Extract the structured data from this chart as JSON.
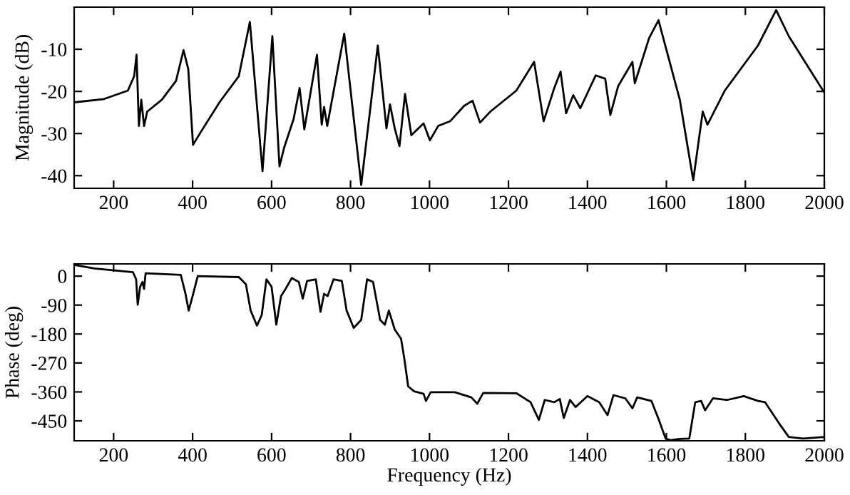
{
  "chart_data": [
    {
      "type": "line",
      "ylabel": "Magnitude (dB)",
      "xlim": [
        100,
        2000
      ],
      "ylim": [
        -43,
        0
      ],
      "xticks": [
        200,
        400,
        600,
        800,
        1000,
        1200,
        1400,
        1600,
        1800,
        2000
      ],
      "yticks": [
        -10,
        -20,
        -30,
        -40
      ],
      "grid": false,
      "marker": "none",
      "line_style": "solid",
      "series": [
        {
          "color": "#000000",
          "x": [
            100,
            176,
            236,
            252,
            258,
            264,
            270,
            277,
            285,
            322,
            358,
            377,
            389,
            401,
            419,
            468,
            517,
            545,
            577,
            602,
            620,
            632,
            656,
            671,
            683,
            715,
            727,
            733,
            741,
            784,
            827,
            869,
            891,
            900,
            912,
            924,
            938,
            954,
            985,
            1001,
            1022,
            1052,
            1088,
            1109,
            1128,
            1154,
            1220,
            1265,
            1289,
            1316,
            1332,
            1346,
            1364,
            1382,
            1421,
            1445,
            1458,
            1478,
            1514,
            1520,
            1556,
            1580,
            1634,
            1668,
            1692,
            1704,
            1748,
            1832,
            1878,
            1910,
            2000
          ],
          "values": [
            -22.6,
            -21.8,
            -19.8,
            -16.4,
            -11.3,
            -28.2,
            -22,
            -28.2,
            -24.8,
            -22,
            -17.5,
            -10.2,
            -14.7,
            -32.7,
            -29.9,
            -22.6,
            -16.4,
            -3.5,
            -38.9,
            -6.9,
            -37.8,
            -33.3,
            -26.5,
            -19.2,
            -29,
            -11.3,
            -27.9,
            -23.7,
            -28.2,
            -6.3,
            -42.2,
            -9.1,
            -28.8,
            -23.1,
            -28.8,
            -33,
            -20.6,
            -30.4,
            -27.6,
            -31.6,
            -28.2,
            -27.1,
            -23.4,
            -22.2,
            -27.4,
            -24.8,
            -19.8,
            -13,
            -27.1,
            -19.2,
            -15.3,
            -25.2,
            -20.9,
            -24,
            -16.2,
            -17,
            -25.6,
            -18.7,
            -13,
            -18.1,
            -7.4,
            -3.1,
            -22,
            -41.1,
            -24.8,
            -27.9,
            -19.8,
            -9.1,
            -0.7,
            -6.9,
            -20.3
          ]
        }
      ]
    },
    {
      "type": "line",
      "xlabel": "Frequency (Hz)",
      "ylabel": "Phase (deg)",
      "xlim": [
        100,
        2000
      ],
      "ylim": [
        -512,
        38
      ],
      "xticks": [
        200,
        400,
        600,
        800,
        1000,
        1200,
        1400,
        1600,
        1800,
        2000
      ],
      "yticks": [
        0,
        -90,
        -180,
        -270,
        -360,
        -450
      ],
      "grid": false,
      "marker": "none",
      "line_style": "solid",
      "series": [
        {
          "color": "#000000",
          "x": [
            100,
            151,
            249,
            257,
            261,
            267,
            273,
            277,
            281,
            370,
            382,
            390,
            400,
            413,
            517,
            535,
            547,
            563,
            575,
            587,
            600,
            612,
            624,
            632,
            651,
            669,
            679,
            690,
            712,
            724,
            733,
            742,
            757,
            778,
            790,
            808,
            827,
            842,
            857,
            875,
            887,
            897,
            912,
            928,
            936,
            946,
            961,
            985,
            991,
            1003,
            1064,
            1106,
            1121,
            1136,
            1220,
            1256,
            1277,
            1292,
            1316,
            1330,
            1340,
            1356,
            1370,
            1400,
            1430,
            1451,
            1466,
            1496,
            1514,
            1526,
            1562,
            1580,
            1598,
            1610,
            1634,
            1658,
            1673,
            1688,
            1698,
            1718,
            1754,
            1796,
            1832,
            1850,
            1886,
            1910,
            1946,
            2000
          ],
          "values": [
            35,
            24,
            12,
            -10,
            -89,
            -33,
            -18,
            -40,
            9,
            4,
            -55,
            -107,
            -62,
            0,
            -3,
            -25,
            -107,
            -154,
            -121,
            -10,
            -33,
            -151,
            -62,
            -47,
            -6,
            -18,
            -70,
            -15,
            -10,
            -111,
            -55,
            -62,
            -10,
            -15,
            -107,
            -161,
            -136,
            -10,
            -18,
            -136,
            -151,
            -107,
            -166,
            -195,
            -255,
            -343,
            -358,
            -366,
            -388,
            -361,
            -361,
            -377,
            -397,
            -363,
            -364,
            -392,
            -447,
            -385,
            -392,
            -382,
            -441,
            -385,
            -407,
            -373,
            -392,
            -432,
            -370,
            -380,
            -411,
            -377,
            -388,
            -444,
            -505,
            -510,
            -506,
            -505,
            -392,
            -388,
            -417,
            -380,
            -385,
            -373,
            -388,
            -392,
            -459,
            -500,
            -505,
            -500
          ]
        }
      ]
    }
  ]
}
